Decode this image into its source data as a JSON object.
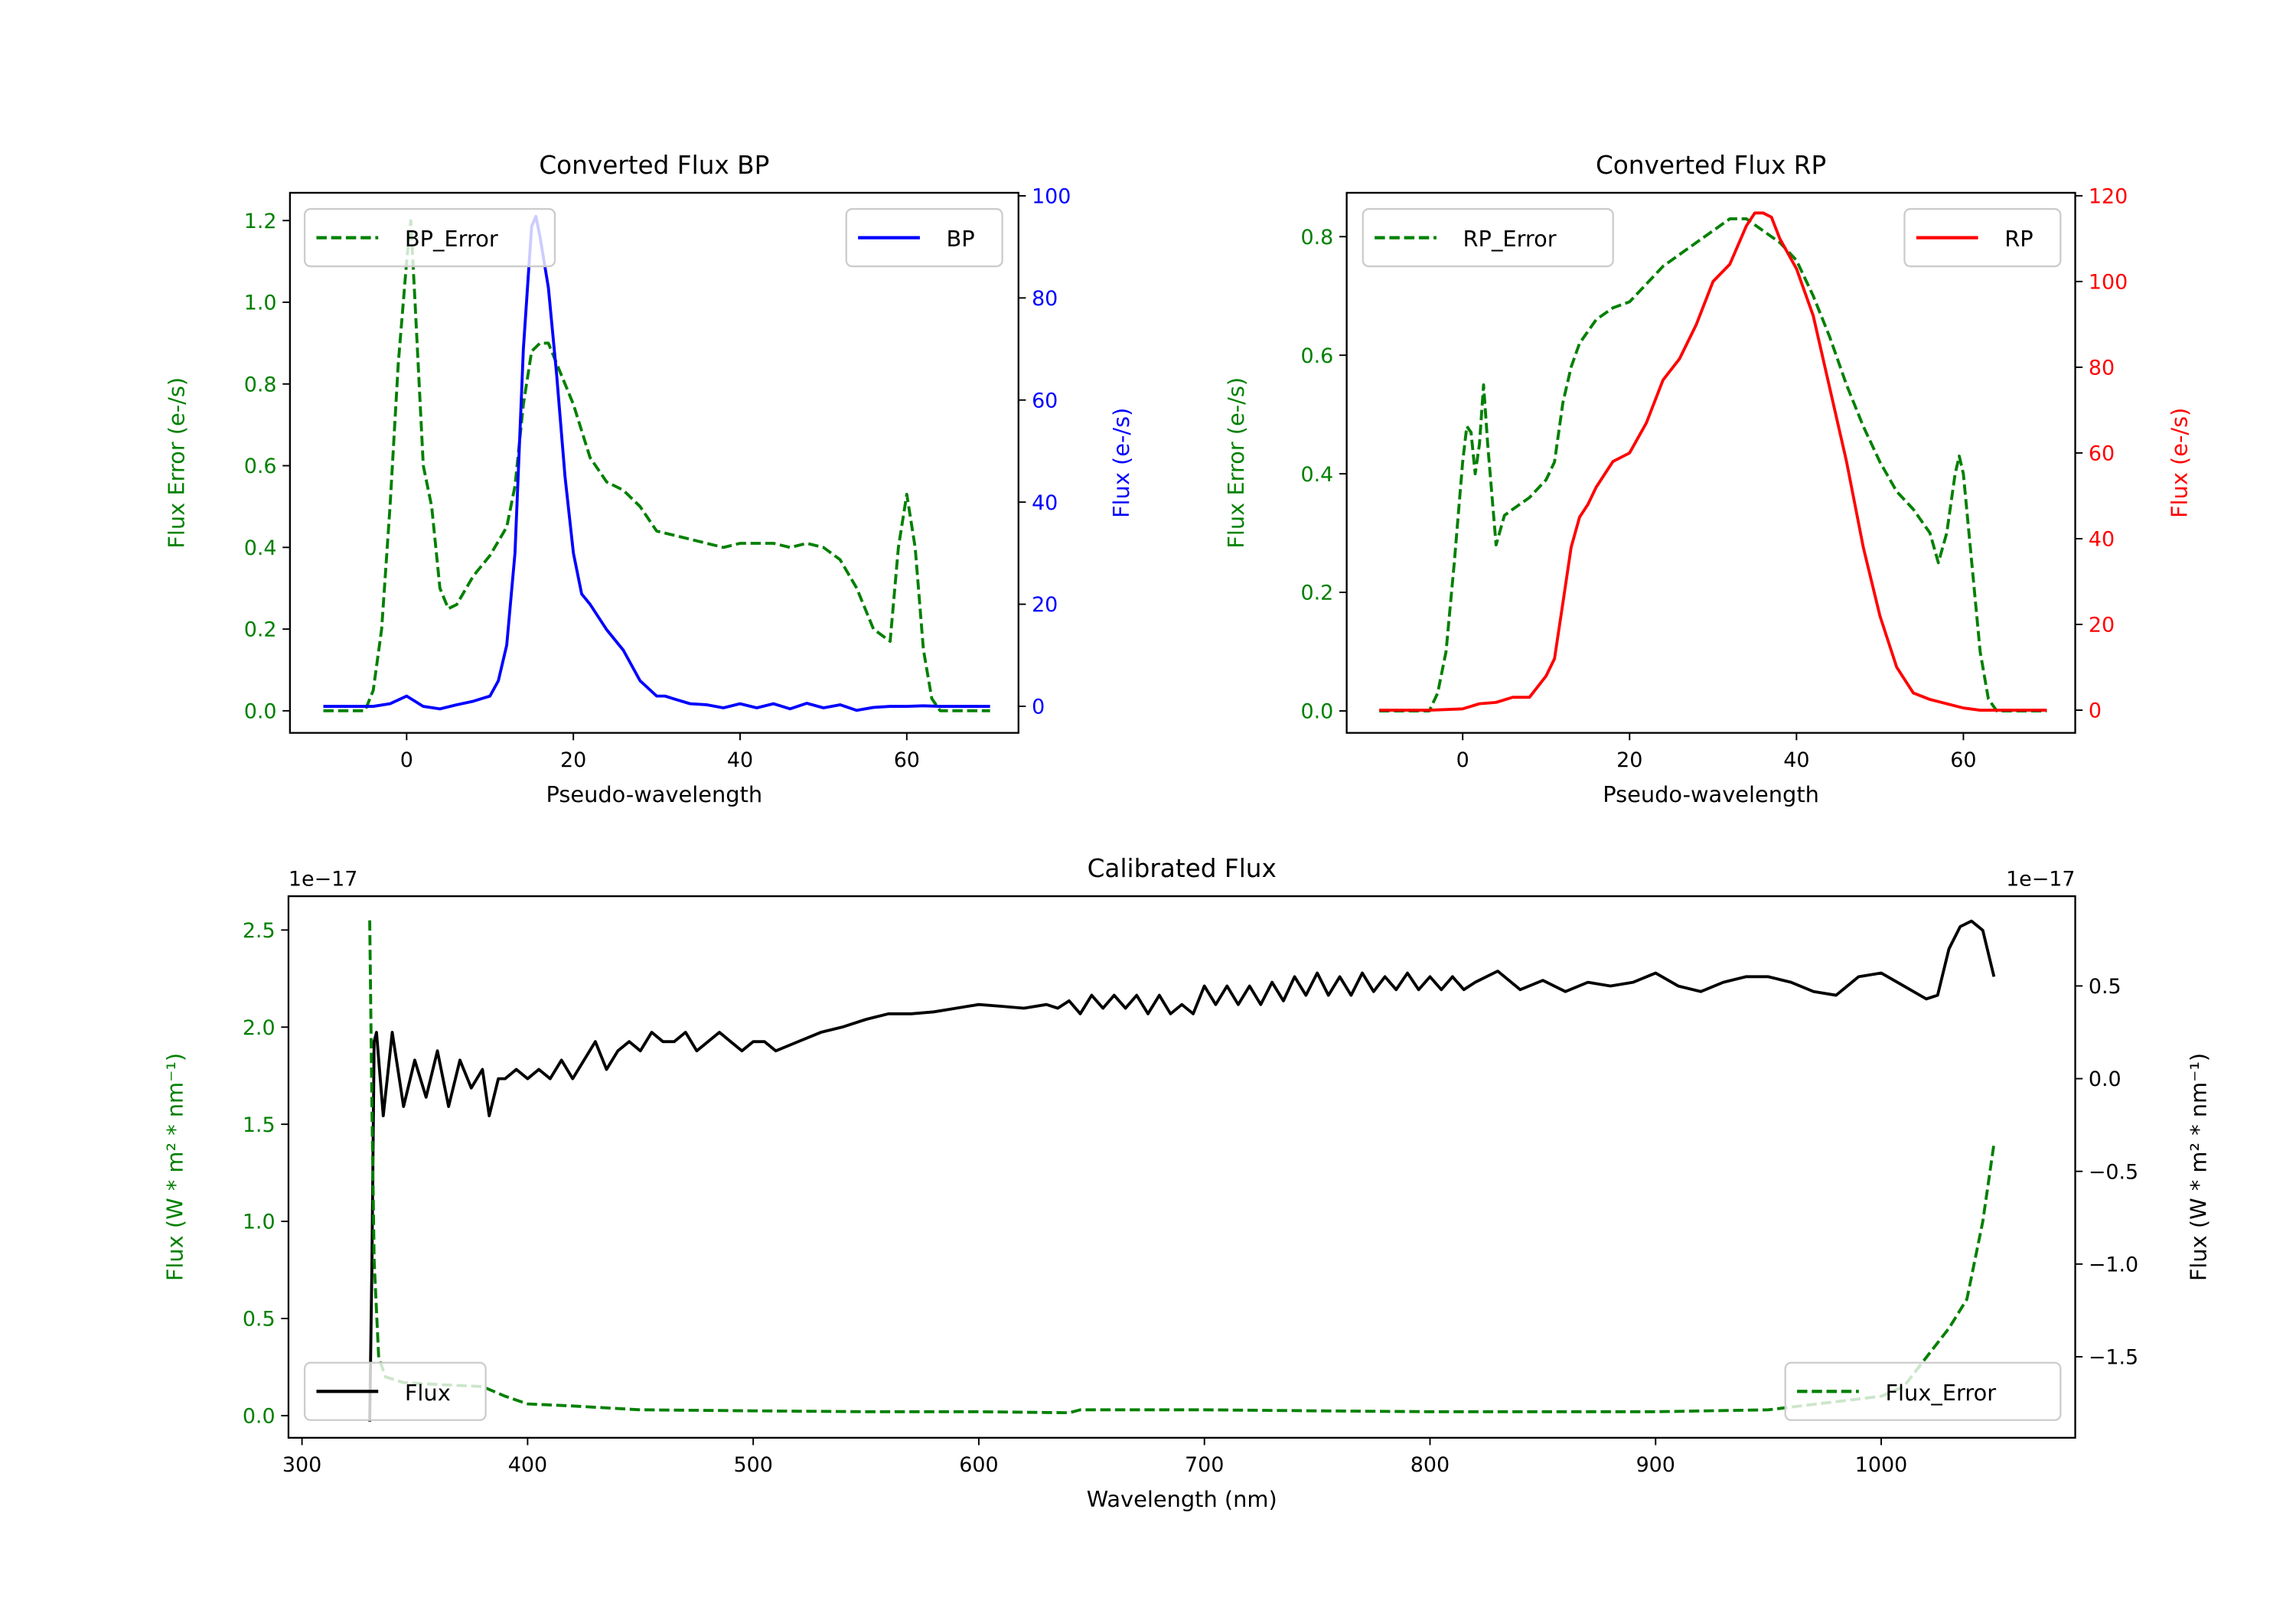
{
  "chart_data": [
    {
      "type": "line",
      "title": "Converted Flux BP",
      "xlabel": "Pseudo-wavelength",
      "ylabel_left": "Flux Error (e-/s)",
      "ylabel_right": "Flux (e-/s)",
      "xlim": [
        -14,
        73.4
      ],
      "ylim_left": [
        -0.054,
        1.268
      ],
      "ylim_right": [
        -5.2,
        100.6
      ],
      "xticks": [
        "0",
        "20",
        "40",
        "60"
      ],
      "yticks_left": [
        "0.0",
        "0.2",
        "0.4",
        "0.6",
        "0.8",
        "1.0",
        "1.2"
      ],
      "yticks_right": [
        "0",
        "20",
        "40",
        "60",
        "80",
        "100"
      ],
      "left_color": "#008000",
      "right_color": "#0000ff",
      "series": [
        {
          "name": "BP_Error",
          "axis": "left",
          "style": "dashed",
          "color": "#008000",
          "legend": "upper left",
          "x": [
            -10,
            -5,
            -4,
            -3,
            -2,
            -1,
            0,
            0.5,
            1,
            2,
            3,
            4,
            5,
            6,
            8,
            10,
            12,
            13,
            14,
            15,
            16,
            17,
            18,
            20,
            22,
            24,
            26,
            28,
            30,
            32,
            34,
            36,
            38,
            40,
            42,
            44,
            46,
            48,
            50,
            52,
            54,
            56,
            58,
            59,
            60,
            61,
            62,
            63,
            64,
            70
          ],
          "y": [
            0,
            0,
            0.05,
            0.2,
            0.5,
            0.85,
            1.1,
            1.2,
            1.0,
            0.6,
            0.5,
            0.3,
            0.25,
            0.26,
            0.33,
            0.38,
            0.45,
            0.55,
            0.75,
            0.88,
            0.9,
            0.9,
            0.85,
            0.75,
            0.62,
            0.56,
            0.54,
            0.5,
            0.44,
            0.43,
            0.42,
            0.41,
            0.4,
            0.41,
            0.41,
            0.41,
            0.4,
            0.41,
            0.4,
            0.37,
            0.3,
            0.2,
            0.17,
            0.4,
            0.53,
            0.4,
            0.15,
            0.03,
            0,
            0
          ]
        },
        {
          "name": "BP",
          "axis": "right",
          "style": "solid",
          "color": "#0000ff",
          "legend": "upper right",
          "x": [
            -10,
            -6,
            -4,
            -2,
            0,
            2,
            4,
            6,
            8,
            10,
            11,
            12,
            13,
            14,
            15,
            15.5,
            16,
            17,
            18,
            19,
            20,
            21,
            22,
            24,
            26,
            28,
            30,
            31,
            32,
            34,
            36,
            38,
            40,
            42,
            44,
            46,
            48,
            50,
            52,
            54,
            56,
            58,
            60,
            62,
            64,
            66,
            68,
            70
          ],
          "y": [
            0,
            0,
            0,
            0.5,
            2,
            0,
            -0.5,
            0.3,
            1,
            2,
            5,
            12,
            30,
            70,
            94,
            96,
            92,
            82,
            65,
            45,
            30,
            22,
            20,
            15,
            11,
            5,
            2,
            2,
            1.5,
            0.5,
            0.3,
            -0.3,
            0.5,
            -0.3,
            0.5,
            -0.5,
            0.6,
            -0.3,
            0.3,
            -0.8,
            -0.2,
            0,
            0,
            0.1,
            0,
            0,
            0,
            0
          ]
        }
      ]
    },
    {
      "type": "line",
      "title": "Converted Flux RP",
      "xlabel": "Pseudo-wavelength",
      "ylabel_left": "Flux Error (e-/s)",
      "ylabel_right": "Flux (e-/s)",
      "xlim": [
        -13.9,
        73.4
      ],
      "ylim_left": [
        -0.037,
        0.874
      ],
      "ylim_right": [
        -5.3,
        120.7
      ],
      "xticks": [
        "0",
        "20",
        "40",
        "60"
      ],
      "yticks_left": [
        "0.0",
        "0.2",
        "0.4",
        "0.6",
        "0.8"
      ],
      "yticks_right": [
        "0",
        "20",
        "40",
        "60",
        "80",
        "100",
        "120"
      ],
      "left_color": "#008000",
      "right_color": "#ff0000",
      "series": [
        {
          "name": "RP_Error",
          "axis": "left",
          "style": "dashed",
          "color": "#008000",
          "legend": "upper left",
          "x": [
            -10,
            -4,
            -3,
            -2,
            -1,
            0,
            0.5,
            1,
            1.5,
            2,
            2.5,
            3,
            4,
            5,
            6,
            8,
            10,
            11,
            12,
            13,
            14,
            16,
            18,
            20,
            22,
            24,
            26,
            28,
            30,
            32,
            34,
            36,
            38,
            40,
            42,
            44,
            46,
            48,
            50,
            52,
            54,
            56,
            57,
            58,
            59,
            59.5,
            60,
            61,
            62,
            63,
            64,
            70
          ],
          "y": [
            0,
            0,
            0.03,
            0.1,
            0.25,
            0.42,
            0.48,
            0.47,
            0.4,
            0.45,
            0.55,
            0.45,
            0.28,
            0.33,
            0.34,
            0.36,
            0.39,
            0.42,
            0.52,
            0.58,
            0.62,
            0.66,
            0.68,
            0.69,
            0.72,
            0.75,
            0.77,
            0.79,
            0.81,
            0.83,
            0.83,
            0.81,
            0.79,
            0.76,
            0.7,
            0.63,
            0.55,
            0.48,
            0.42,
            0.37,
            0.34,
            0.3,
            0.25,
            0.3,
            0.4,
            0.43,
            0.4,
            0.25,
            0.1,
            0.02,
            0,
            0
          ]
        },
        {
          "name": "RP",
          "axis": "right",
          "style": "solid",
          "color": "#ff0000",
          "legend": "upper right",
          "x": [
            -10,
            -4,
            0,
            2,
            4,
            6,
            8,
            10,
            11,
            12,
            13,
            14,
            15,
            16,
            18,
            20,
            22,
            24,
            26,
            28,
            30,
            32,
            34,
            35,
            36,
            37,
            38,
            40,
            42,
            44,
            46,
            48,
            50,
            52,
            54,
            56,
            58,
            60,
            62,
            70
          ],
          "y": [
            0,
            0,
            0.3,
            1.5,
            1.8,
            3,
            3,
            8,
            12,
            25,
            38,
            45,
            48,
            52,
            58,
            60,
            67,
            77,
            82,
            90,
            100,
            104,
            113,
            116,
            116,
            115,
            110,
            103,
            92,
            75,
            58,
            38,
            22,
            10,
            4,
            2.5,
            1.5,
            0.5,
            0,
            0
          ]
        }
      ]
    },
    {
      "type": "line",
      "title": "Calibrated Flux",
      "xlabel": "Wavelength (nm)",
      "ylabel_left": "Flux (W * m² * nm⁻¹)",
      "ylabel_right": "Flux (W * m² * nm⁻¹)",
      "offset_left": "1e−17",
      "offset_right": "1e−17",
      "xlim": [
        294,
        1086
      ],
      "ylim_left": [
        -0.114,
        2.674
      ],
      "ylim_right": [
        -1.937,
        0.984
      ],
      "xticks": [
        "300",
        "400",
        "500",
        "600",
        "700",
        "800",
        "900",
        "1000"
      ],
      "yticks_left": [
        "0.0",
        "0.5",
        "1.0",
        "1.5",
        "2.0",
        "2.5"
      ],
      "yticks_right": [
        "−1.5",
        "−1.0",
        "−0.5",
        "0.0",
        "0.5"
      ],
      "left_color": "#008000",
      "right_color": "#000000",
      "series": [
        {
          "name": "Flux",
          "axis": "right",
          "style": "solid",
          "color": "#000000",
          "legend": "lower left",
          "x": [
            330,
            331,
            332,
            333,
            336,
            340,
            345,
            350,
            355,
            360,
            365,
            370,
            375,
            380,
            383,
            387,
            390,
            395,
            400,
            405,
            410,
            415,
            420,
            425,
            430,
            435,
            440,
            445,
            450,
            455,
            460,
            465,
            470,
            475,
            480,
            485,
            490,
            495,
            500,
            505,
            510,
            520,
            530,
            540,
            550,
            560,
            570,
            580,
            590,
            600,
            610,
            620,
            630,
            635,
            640,
            645,
            650,
            655,
            660,
            665,
            670,
            675,
            680,
            685,
            690,
            695,
            700,
            705,
            710,
            715,
            720,
            725,
            730,
            735,
            740,
            745,
            750,
            755,
            760,
            765,
            770,
            775,
            780,
            785,
            790,
            795,
            800,
            805,
            810,
            815,
            820,
            830,
            840,
            850,
            860,
            870,
            880,
            890,
            900,
            910,
            920,
            930,
            940,
            950,
            960,
            970,
            980,
            990,
            1000,
            1010,
            1020,
            1025,
            1030,
            1035,
            1040,
            1045,
            1050
          ],
          "y": [
            -1.85,
            -1.0,
            0.2,
            0.25,
            -0.2,
            0.25,
            -0.15,
            0.1,
            -0.1,
            0.15,
            -0.15,
            0.1,
            -0.05,
            0.05,
            -0.2,
            0.0,
            0.0,
            0.05,
            0.0,
            0.05,
            0.0,
            0.1,
            0.0,
            0.1,
            0.2,
            0.05,
            0.15,
            0.2,
            0.15,
            0.25,
            0.2,
            0.2,
            0.25,
            0.15,
            0.2,
            0.25,
            0.2,
            0.15,
            0.2,
            0.2,
            0.15,
            0.2,
            0.25,
            0.28,
            0.32,
            0.35,
            0.35,
            0.36,
            0.38,
            0.4,
            0.39,
            0.38,
            0.4,
            0.38,
            0.42,
            0.35,
            0.45,
            0.38,
            0.45,
            0.38,
            0.45,
            0.35,
            0.45,
            0.35,
            0.4,
            0.35,
            0.5,
            0.4,
            0.5,
            0.4,
            0.5,
            0.4,
            0.52,
            0.42,
            0.55,
            0.45,
            0.57,
            0.45,
            0.55,
            0.45,
            0.57,
            0.47,
            0.55,
            0.48,
            0.57,
            0.48,
            0.55,
            0.48,
            0.55,
            0.48,
            0.52,
            0.58,
            0.48,
            0.53,
            0.47,
            0.52,
            0.5,
            0.52,
            0.57,
            0.5,
            0.47,
            0.52,
            0.55,
            0.55,
            0.52,
            0.47,
            0.45,
            0.55,
            0.57,
            0.5,
            0.43,
            0.45,
            0.7,
            0.82,
            0.85,
            0.8,
            0.55
          ]
        },
        {
          "name": "Flux_Error",
          "axis": "left",
          "style": "dashed",
          "color": "#008000",
          "legend": "lower right",
          "x": [
            330,
            331,
            332,
            334,
            337,
            345,
            360,
            380,
            390,
            400,
            420,
            450,
            500,
            550,
            600,
            640,
            645,
            700,
            750,
            800,
            900,
            950,
            1000,
            1010,
            1020,
            1030,
            1038,
            1045,
            1050
          ],
          "y": [
            2.55,
            1.6,
            0.8,
            0.3,
            0.2,
            0.17,
            0.16,
            0.15,
            0.1,
            0.06,
            0.05,
            0.03,
            0.025,
            0.02,
            0.02,
            0.015,
            0.03,
            0.03,
            0.025,
            0.02,
            0.02,
            0.03,
            0.1,
            0.15,
            0.3,
            0.45,
            0.6,
            1.0,
            1.4
          ]
        }
      ]
    }
  ]
}
